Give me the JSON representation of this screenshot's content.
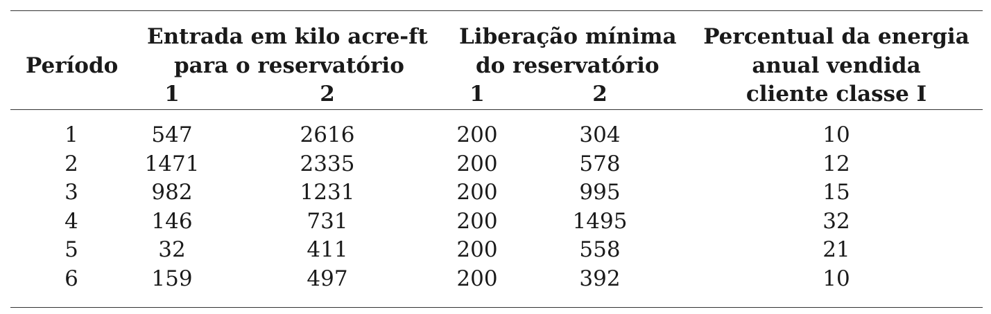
{
  "table": {
    "headers": {
      "periodo": "Período",
      "entrada_line1": "Entrada em kilo acre-ft",
      "entrada_line2": "para o reservatório",
      "entrada_sub1": "1",
      "entrada_sub2": "2",
      "liberacao_line1": "Liberação mínima",
      "liberacao_line2": "do reservatório",
      "liberacao_sub1": "1",
      "liberacao_sub2": "2",
      "percentual_line1": "Percentual da energia",
      "percentual_line2": "anual vendida",
      "percentual_line3": "cliente classe I"
    },
    "rows": [
      [
        "1",
        "547",
        "2616",
        "200",
        "304",
        "10"
      ],
      [
        "2",
        "1471",
        "2335",
        "200",
        "578",
        "12"
      ],
      [
        "3",
        "982",
        "1231",
        "200",
        "995",
        "15"
      ],
      [
        "4",
        "146",
        "731",
        "200",
        "1495",
        "32"
      ],
      [
        "5",
        "32",
        "411",
        "200",
        "558",
        "21"
      ],
      [
        "6",
        "159",
        "497",
        "200",
        "392",
        "10"
      ]
    ]
  }
}
